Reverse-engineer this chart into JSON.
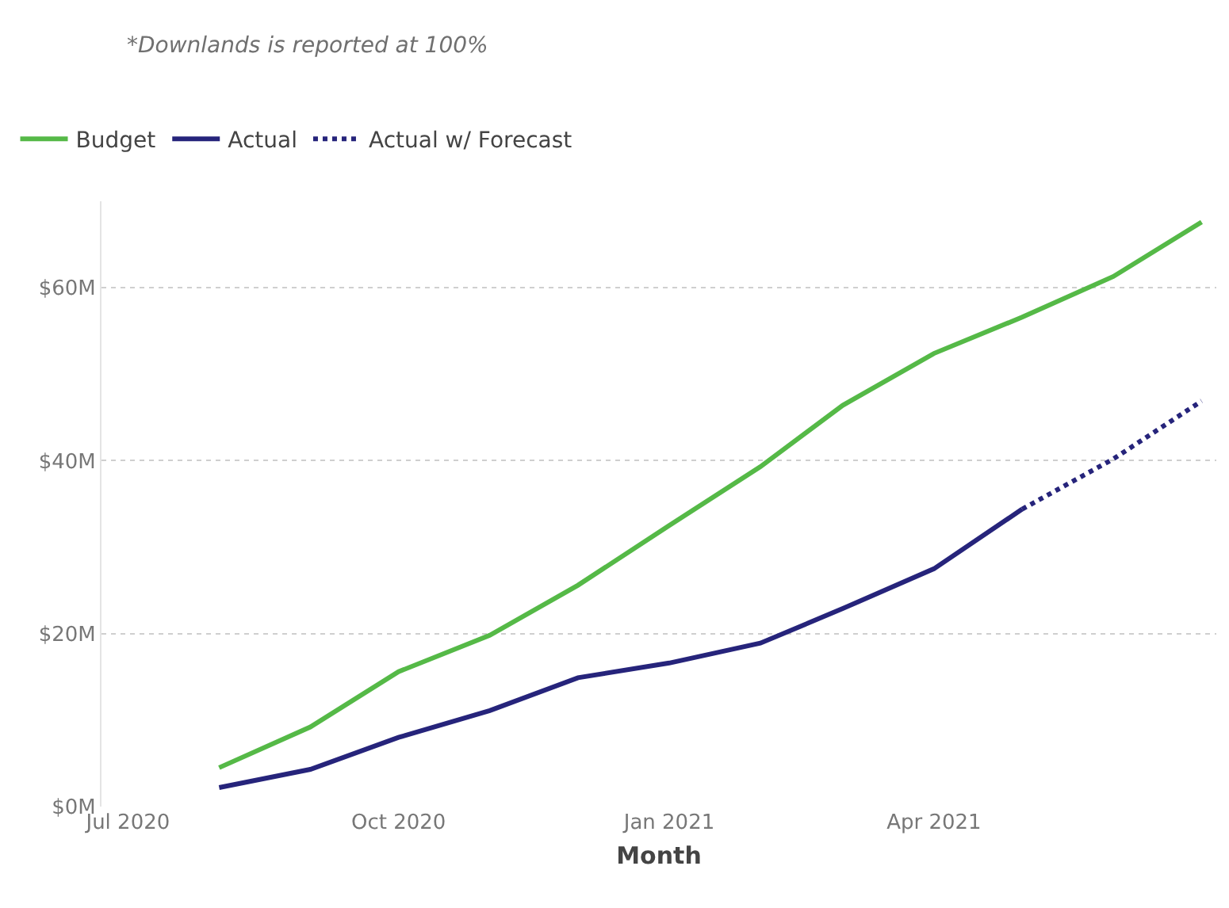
{
  "chart_data": {
    "type": "line",
    "annotations": [
      "*Downlands is reported at 100%"
    ],
    "xlabel": "Month",
    "x": [
      "2020-08",
      "2020-09",
      "2020-10",
      "2020-11",
      "2020-12",
      "2021-01",
      "2021-02",
      "2021-03",
      "2021-04",
      "2021-05",
      "2021-06",
      "2021-07"
    ],
    "series": [
      {
        "name": "Budget",
        "color": "#55b947",
        "values": [
          4.5,
          9.2,
          15.6,
          19.8,
          25.6,
          32.5,
          39.3,
          46.4,
          52.4,
          56.6,
          61.3,
          67.6
        ]
      },
      {
        "name": "Actual",
        "color": "#26247b",
        "values": [
          2.2,
          4.3,
          8.0,
          11.1,
          14.9,
          16.6,
          18.9,
          22.9,
          27.5,
          34.4,
          null,
          null
        ]
      },
      {
        "name": "Actual w/ Forecast",
        "color": "#26247b",
        "line_style": "dotted",
        "x": [
          "2021-05",
          "2021-06",
          "2021-07"
        ],
        "values": [
          34.4,
          40.2,
          46.9
        ]
      }
    ],
    "xlim": [
      "2020-06-22",
      "2021-07-06"
    ],
    "xticks": [
      {
        "value": "2020-07",
        "label": "Jul 2020"
      },
      {
        "value": "2020-10",
        "label": "Oct 2020"
      },
      {
        "value": "2021-01",
        "label": "Jan 2021"
      },
      {
        "value": "2021-04",
        "label": "Apr 2021"
      }
    ],
    "ylim": [
      0,
      70
    ],
    "yticks": [
      {
        "value": 0,
        "label": "$0M"
      },
      {
        "value": 20,
        "label": "$20M"
      },
      {
        "value": 40,
        "label": "$40M"
      },
      {
        "value": 60,
        "label": "$60M"
      }
    ],
    "grid": "y",
    "legend": "top left",
    "marker": "none",
    "line_style": "solid"
  }
}
